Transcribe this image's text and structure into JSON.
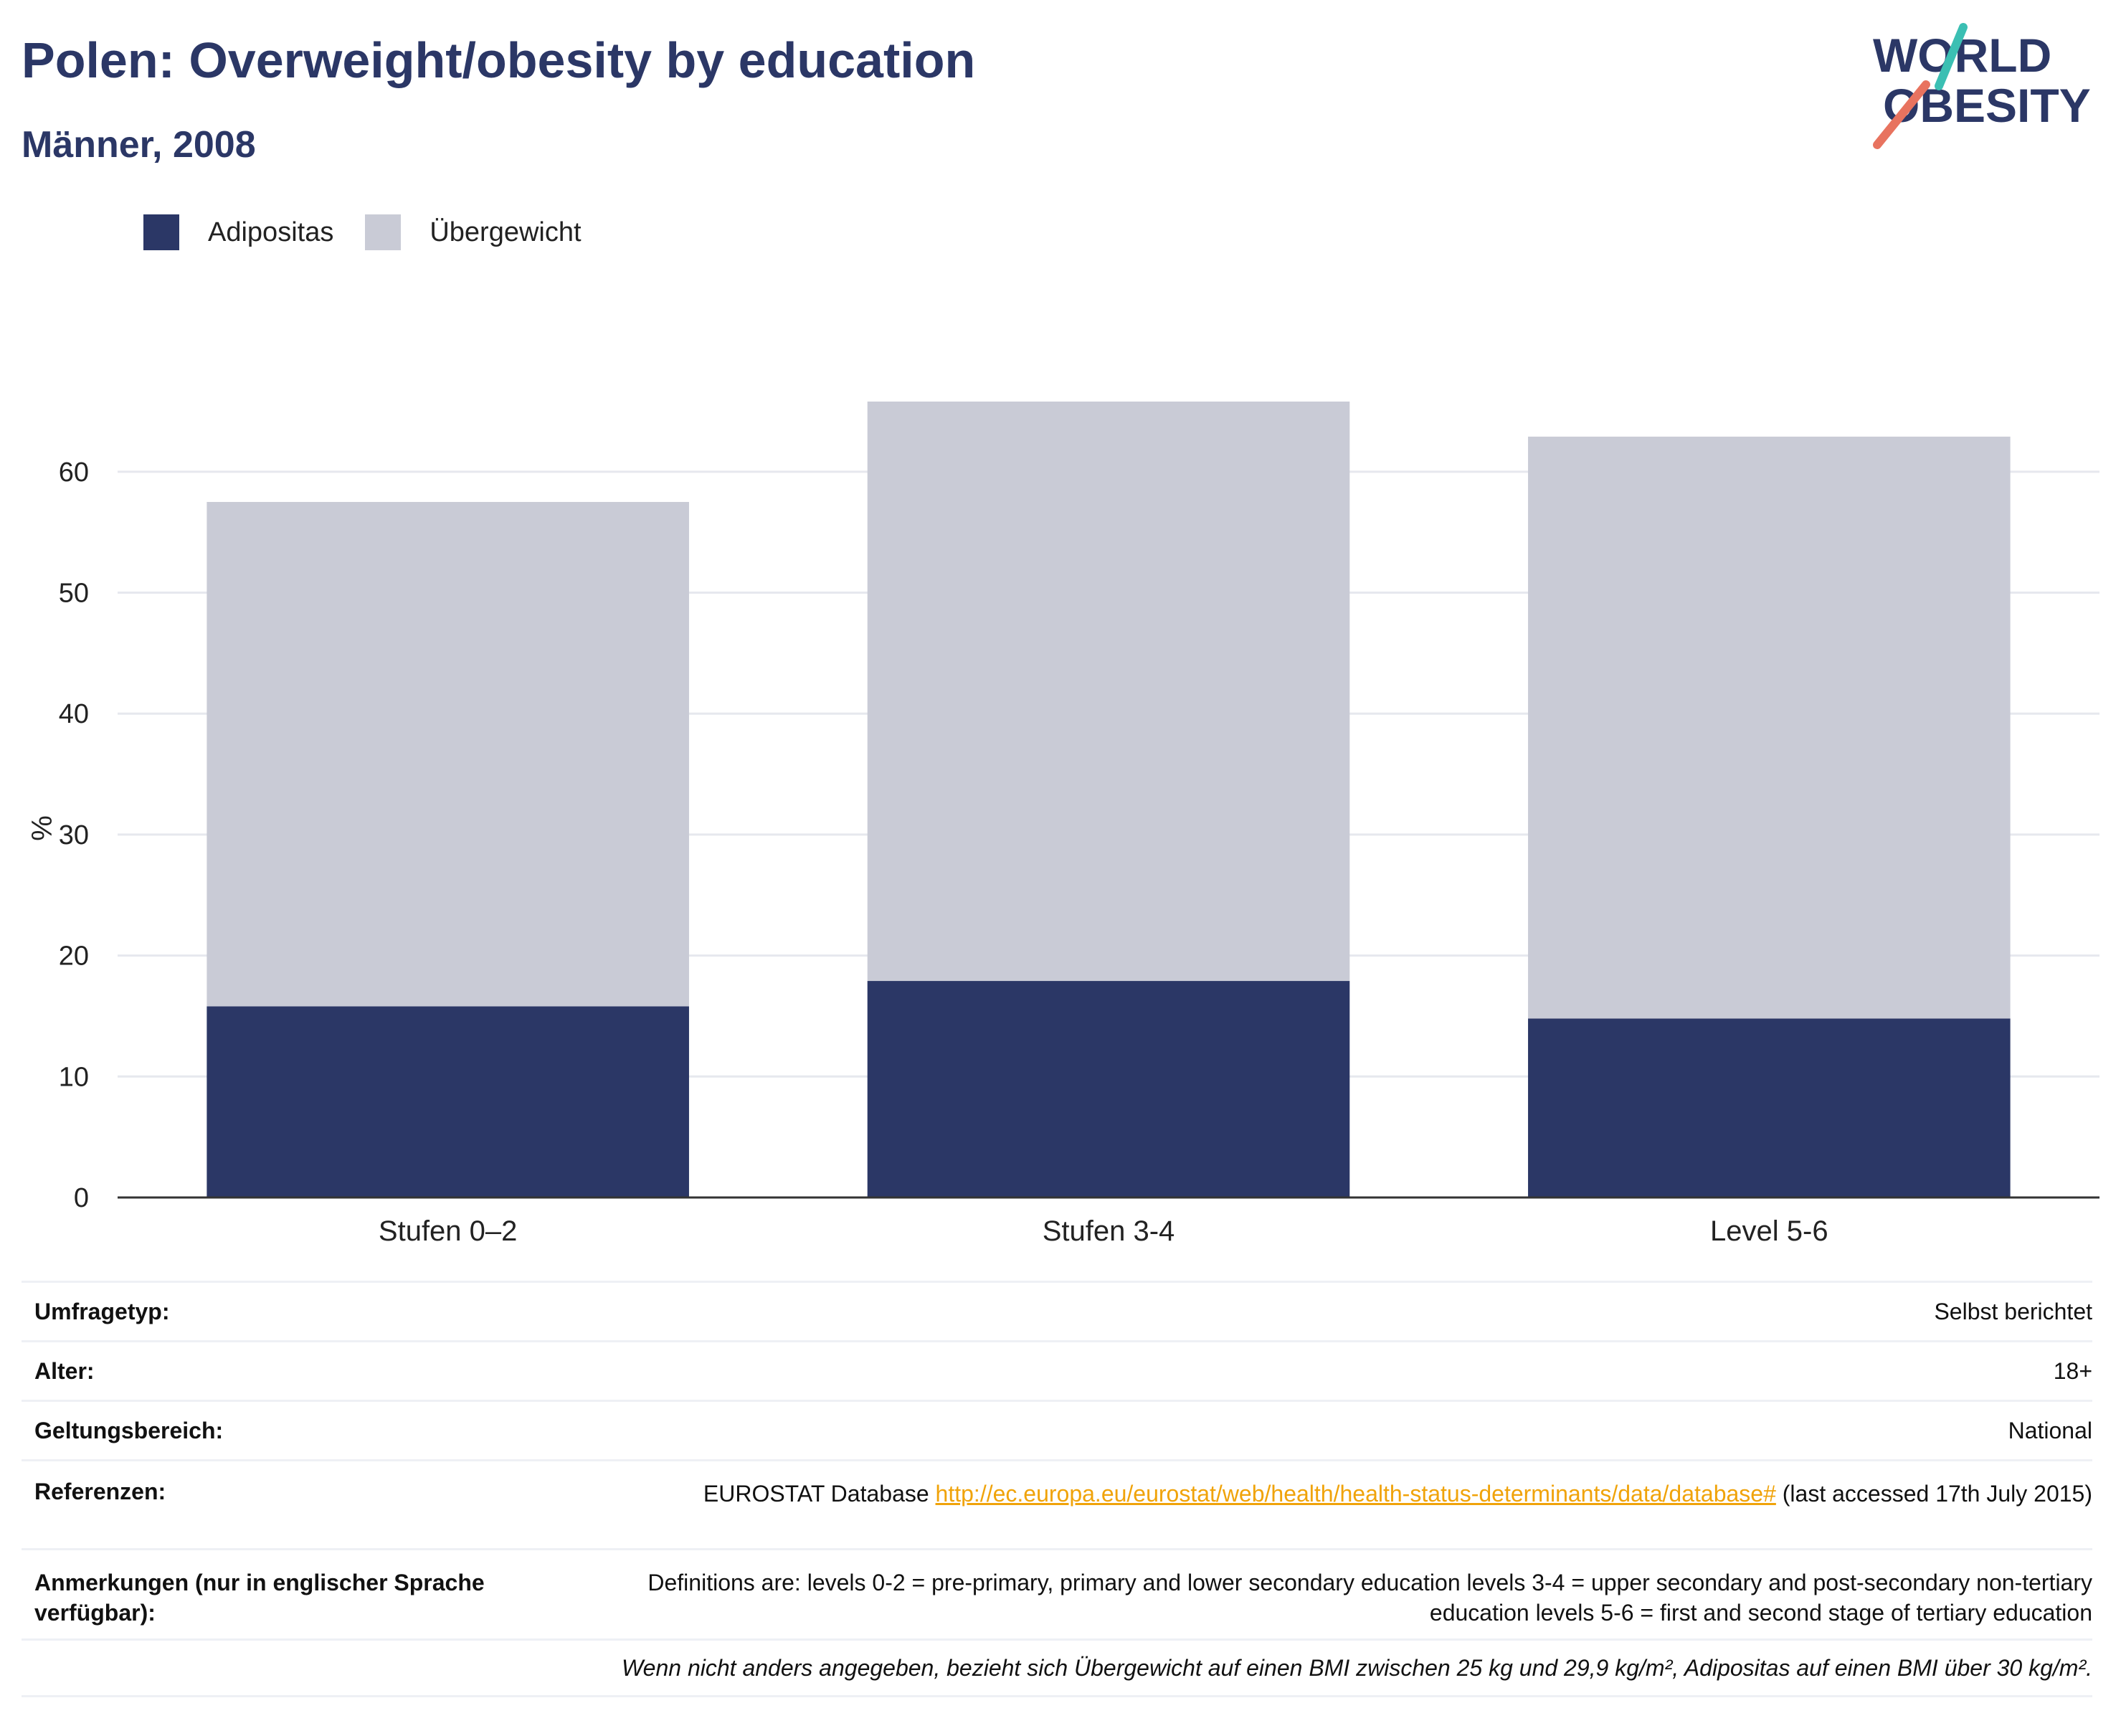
{
  "header": {
    "title": "Polen: Overweight/obesity by education",
    "subtitle": "Männer, 2008"
  },
  "logo": {
    "line1": "WORLD",
    "line2": "OBESITY"
  },
  "colors": {
    "adipositas": "#2b3766",
    "uebergewicht": "#c9cbd6",
    "accent_teal": "#3bbfb3",
    "accent_coral": "#e8735f",
    "link": "#f0a30a"
  },
  "legend": [
    {
      "label": "Adipositas",
      "color": "#2b3766"
    },
    {
      "label": "Übergewicht",
      "color": "#c9cbd6"
    }
  ],
  "chart_data": {
    "type": "bar",
    "stacked": true,
    "categories": [
      "Stufen 0–2",
      "Stufen 3-4",
      "Level 5-6"
    ],
    "series": [
      {
        "name": "Adipositas",
        "values": [
          15.8,
          17.9,
          14.8
        ]
      },
      {
        "name": "Übergewicht",
        "values": [
          41.7,
          47.9,
          48.1
        ]
      }
    ],
    "ylabel": "%",
    "ylim": [
      0,
      65.8
    ],
    "yticks": [
      0,
      10,
      20,
      30,
      40,
      50,
      60
    ],
    "grid": true,
    "legend_position": "top-left"
  },
  "info_table": {
    "survey_type": {
      "label": "Umfragetyp:",
      "value": "Selbst berichtet"
    },
    "age": {
      "label": "Alter:",
      "value": "18+"
    },
    "scope": {
      "label": "Geltungsbereich:",
      "value": "National"
    },
    "references": {
      "label": "Referenzen:",
      "prefix": "EUROSTAT Database ",
      "link": "http://ec.europa.eu/eurostat/web/health/health-status-determinants/data/database#",
      "suffix": " (last accessed 17th July 2015)"
    },
    "notes": {
      "label": "Anmerkungen (nur in englischer Sprache verfügbar):",
      "value": "Definitions are: levels 0-2 = pre-primary, primary and lower secondary education levels 3-4 = upper secondary and post-secondary non-tertiary education levels 5-6 = first and second stage of tertiary education"
    },
    "footnote": "Wenn nicht anders angegeben, bezieht sich Übergewicht auf einen BMI zwischen 25 kg und 29,9 kg/m², Adipositas auf einen BMI über 30 kg/m²."
  }
}
